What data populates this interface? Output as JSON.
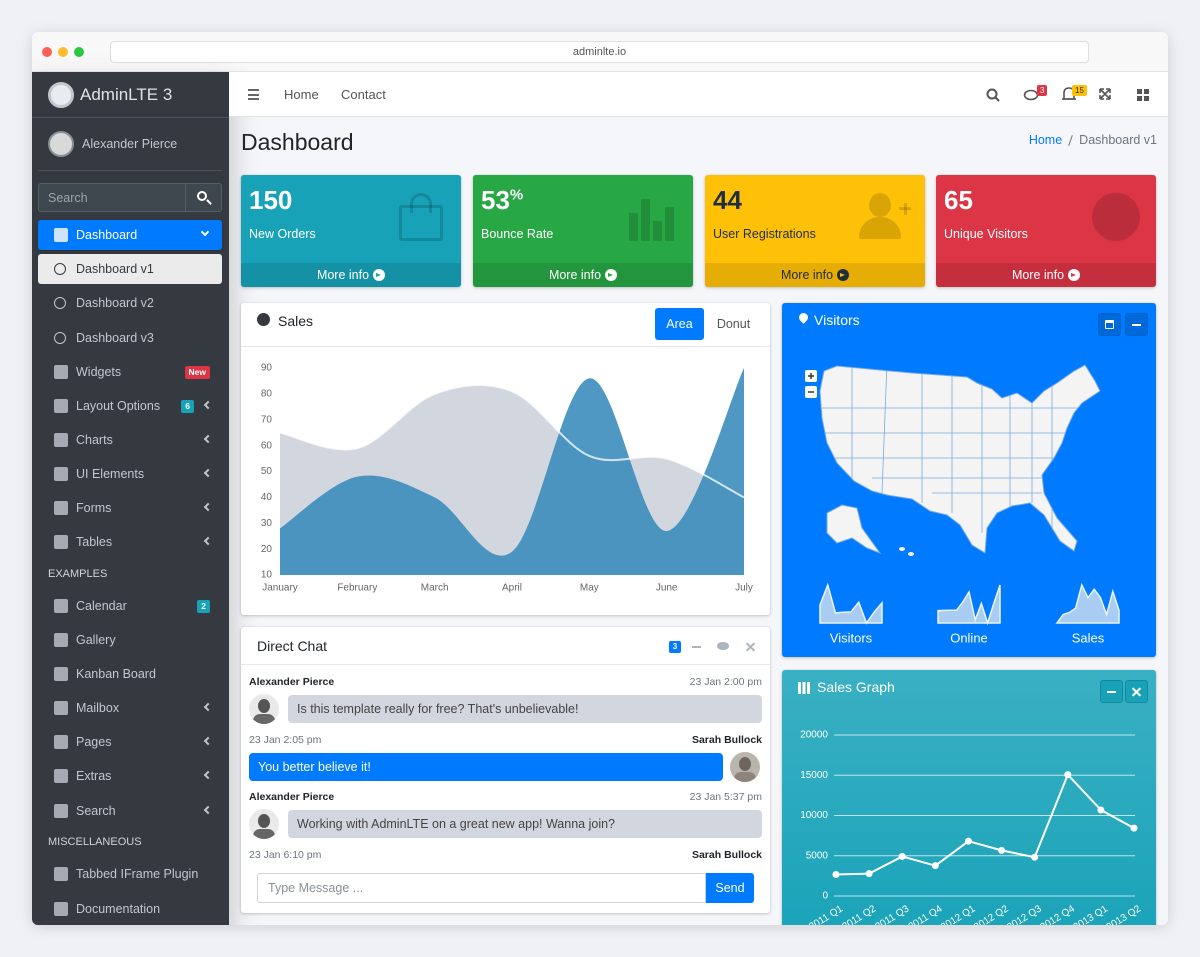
{
  "browser": {
    "url": "adminlte.io"
  },
  "sidebar": {
    "brand": "AdminLTE 3",
    "user": "Alexander Pierce",
    "search_placeholder": "Search",
    "menu": [
      {
        "label": "Dashboard"
      },
      {
        "label": "Dashboard v1"
      },
      {
        "label": "Dashboard v2"
      },
      {
        "label": "Dashboard v3"
      },
      {
        "label": "Widgets",
        "badge": "New"
      },
      {
        "label": "Layout Options",
        "badge": 6
      },
      {
        "label": "Charts"
      },
      {
        "label": "UI Elements"
      },
      {
        "label": "Forms"
      },
      {
        "label": "Tables"
      },
      {
        "header": "EXAMPLES"
      },
      {
        "label": "Calendar",
        "badge": 2
      },
      {
        "label": "Gallery"
      },
      {
        "label": "Kanban Board"
      },
      {
        "label": "Mailbox"
      },
      {
        "label": "Pages"
      },
      {
        "label": "Extras"
      },
      {
        "label": "Search"
      },
      {
        "header": "MISCELLANEOUS"
      },
      {
        "label": "Tabbed IFrame Plugin"
      },
      {
        "label": "Documentation"
      }
    ]
  },
  "navbar": {
    "links": [
      "Home",
      "Contact"
    ],
    "messages_badge": 3,
    "notifications_badge": 15
  },
  "content_header": {
    "title": "Dashboard",
    "breadcrumb": [
      "Home",
      "Dashboard v1"
    ]
  },
  "info_boxes": [
    {
      "value": 150,
      "label": "New Orders",
      "link": "More info"
    },
    {
      "value": 53,
      "suffix": "%",
      "label": "Bounce Rate",
      "link": "More info"
    },
    {
      "value": 44,
      "label": "User Registrations",
      "link": "More info"
    },
    {
      "value": 65,
      "label": "Unique Visitors",
      "link": "More info"
    }
  ],
  "sales_card": {
    "title": "Sales",
    "tabs": [
      "Area",
      "Donut"
    ]
  },
  "chat": {
    "title": "Direct Chat",
    "badge": 3,
    "messages": [
      {
        "name": "Alexander Pierce",
        "time": "23 Jan 2:00 pm",
        "text": "Is this template really for free? That's unbelievable!"
      },
      {
        "name": "Sarah Bullock",
        "time": "23 Jan 2:05 pm",
        "text": "You better believe it!"
      },
      {
        "name": "Alexander Pierce",
        "time": "23 Jan 5:37 pm",
        "text": "Working with AdminLTE on a great new app! Wanna join?"
      },
      {
        "name": "Sarah Bullock",
        "time": "23 Jan 6:10 pm"
      }
    ],
    "placeholder": "Type Message ...",
    "send": "Send"
  },
  "visitors_card": {
    "title": "Visitors"
  },
  "sales_graph_card": {
    "title": "Sales Graph"
  },
  "chart_data": [
    {
      "type": "area",
      "categories": [
        "January",
        "February",
        "March",
        "April",
        "May",
        "June",
        "July"
      ],
      "series": [
        {
          "color": "#d2d6de",
          "values": [
            65,
            59,
            80,
            81,
            56,
            55,
            40
          ]
        },
        {
          "color": "#3c8dbc",
          "values": [
            28,
            48,
            40,
            19,
            86,
            27,
            90
          ]
        }
      ],
      "ylim": [
        10,
        90
      ],
      "yticks": [
        10,
        20,
        30,
        40,
        50,
        60,
        70,
        80,
        90
      ],
      "grid": false
    },
    {
      "type": "sparkline",
      "title": "Visitors",
      "color": "#a9cdf2",
      "values": [
        1000,
        1200,
        920,
        927,
        931,
        1027,
        819,
        930,
        1021
      ]
    },
    {
      "type": "sparkline",
      "title": "Online",
      "color": "#a9cdf2",
      "values": [
        515,
        519,
        520,
        522,
        652,
        810,
        370,
        627,
        319,
        630,
        921
      ]
    },
    {
      "type": "sparkline",
      "title": "Sales",
      "color": "#a9cdf2",
      "values": [
        15,
        19,
        20,
        22,
        33,
        27,
        31,
        27,
        19,
        30,
        21
      ]
    },
    {
      "type": "line",
      "categories": [
        "2011 Q1",
        "2011 Q2",
        "2011 Q3",
        "2011 Q4",
        "2012 Q1",
        "2012 Q2",
        "2012 Q3",
        "2012 Q4",
        "2013 Q1",
        "2013 Q2"
      ],
      "values": [
        2666,
        2778,
        4912,
        3767,
        6810,
        5670,
        4820,
        15073,
        10687,
        8432
      ],
      "color": "#ffffff",
      "ylim": [
        0,
        20000
      ],
      "yticks": [
        0,
        5000,
        10000,
        15000,
        20000
      ],
      "grid": true
    }
  ]
}
